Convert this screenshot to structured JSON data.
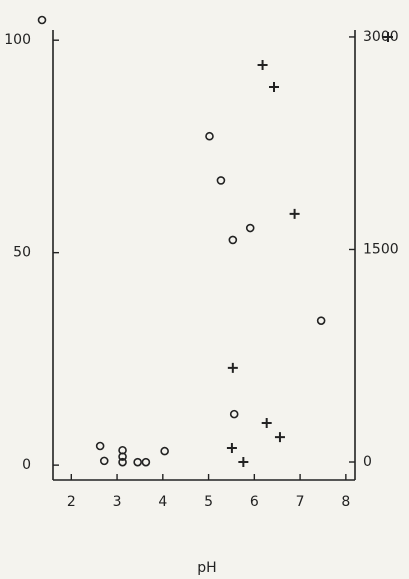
{
  "chart_data": {
    "type": "scatter",
    "x_label": "pH",
    "xlim": [
      1.6,
      8.2
    ],
    "xticks": [
      2,
      3,
      4,
      5,
      6,
      7,
      8
    ],
    "ylim": [
      -3.5,
      102.4
    ],
    "yticks": [
      0,
      50,
      100
    ],
    "y2lim": [
      -127,
      3049
    ],
    "y2ticks": [
      0,
      1500,
      3000
    ],
    "series": [
      {
        "marker": "circle",
        "color": "#222222",
        "x": [
          5.02,
          5.27,
          5.91,
          5.53,
          7.46,
          5.56,
          2.63,
          2.72,
          3.12,
          3.12,
          3.12,
          3.45,
          3.63,
          4.04
        ],
        "values": [
          77.4,
          67,
          55.8,
          53,
          34,
          12,
          4.5,
          1,
          3.5,
          2,
          0.7,
          0.7,
          0.7,
          3.3
        ]
      },
      {
        "marker": "cross",
        "color": "#222222",
        "axis": "y2",
        "x": [
          6.18,
          6.43,
          6.88,
          5.53,
          6.27,
          6.56,
          5.51,
          5.76
        ],
        "values": [
          2802,
          2647,
          1751,
          664,
          275,
          176,
          99,
          0
        ]
      }
    ]
  }
}
